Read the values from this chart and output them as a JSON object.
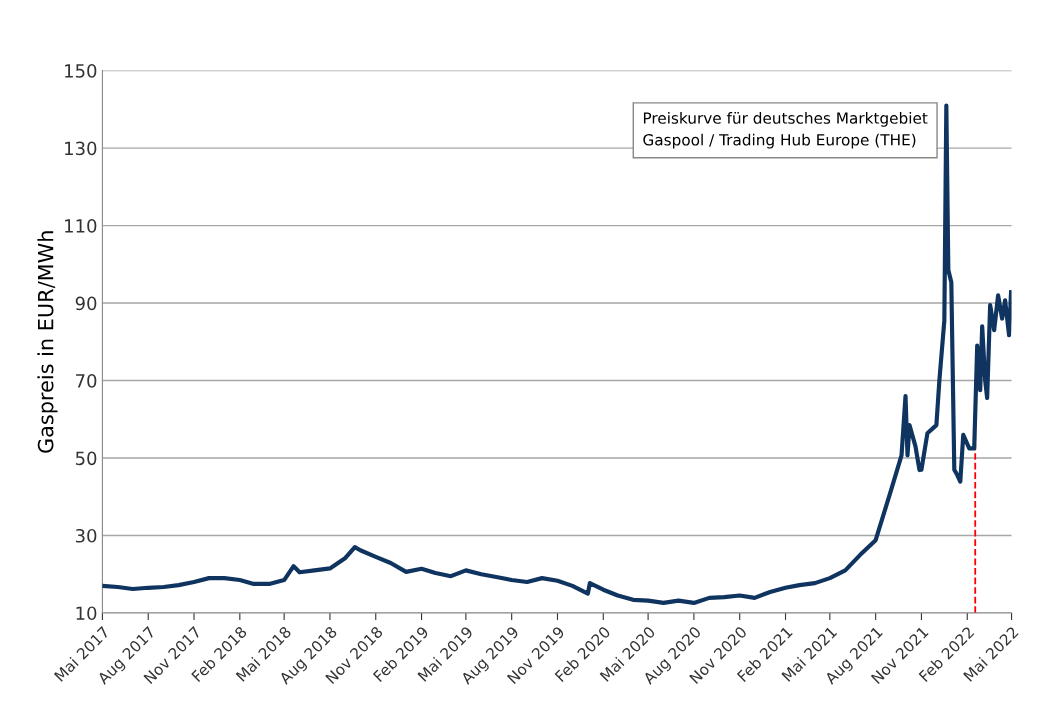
{
  "chart_data": {
    "type": "line",
    "ylabel": "Gaspreis in EUR/MWh",
    "annotations": [
      "Preiskurve für deutsches Marktgebiet\nGaspool / Trading Hub Europe (THE)"
    ],
    "x": [
      "2017-05-01",
      "2017-06-01",
      "2017-07-01",
      "2017-08-01",
      "2017-09-01",
      "2017-10-01",
      "2017-11-01",
      "2017-12-01",
      "2018-01-01",
      "2018-02-01",
      "2018-03-01",
      "2018-04-01",
      "2018-05-01",
      "2018-05-20",
      "2018-06-01",
      "2018-07-01",
      "2018-08-01",
      "2018-09-01",
      "2018-09-20",
      "2018-10-01",
      "2018-11-01",
      "2018-12-01",
      "2019-01-01",
      "2019-02-01",
      "2019-03-01",
      "2019-04-01",
      "2019-05-01",
      "2019-06-01",
      "2019-07-01",
      "2019-08-01",
      "2019-09-01",
      "2019-10-01",
      "2019-11-01",
      "2019-12-01",
      "2020-01-01",
      "2020-01-05",
      "2020-02-01",
      "2020-03-01",
      "2020-04-01",
      "2020-05-01",
      "2020-06-01",
      "2020-07-01",
      "2020-08-01",
      "2020-09-01",
      "2020-10-01",
      "2020-11-01",
      "2020-12-01",
      "2021-01-01",
      "2021-02-01",
      "2021-03-01",
      "2021-04-01",
      "2021-05-01",
      "2021-06-01",
      "2021-07-01",
      "2021-08-01",
      "2021-09-01",
      "2021-09-22",
      "2021-09-30",
      "2021-10-04",
      "2021-10-08",
      "2021-10-20",
      "2021-10-28",
      "2021-11-01",
      "2021-11-13",
      "2021-12-01",
      "2021-12-07",
      "2021-12-17",
      "2021-12-21",
      "2021-12-25",
      "2021-12-31",
      "2022-01-06",
      "2022-01-12",
      "2022-01-18",
      "2022-01-24",
      "2022-02-05",
      "2022-02-15",
      "2022-02-21",
      "2022-02-27",
      "2022-03-03",
      "2022-03-09",
      "2022-03-13",
      "2022-03-19",
      "2022-03-27",
      "2022-04-04",
      "2022-04-12",
      "2022-04-18",
      "2022-04-26",
      "2022-04-30"
    ],
    "series": [
      {
        "color": "#0f3460",
        "values": [
          17.0,
          16.7,
          16.2,
          16.5,
          16.7,
          17.2,
          18.0,
          19.0,
          19.0,
          18.5,
          17.5,
          17.5,
          18.5,
          22.1,
          20.5,
          21.0,
          21.5,
          24.2,
          27.0,
          26.2,
          24.5,
          22.9,
          20.6,
          21.4,
          20.3,
          19.5,
          21.0,
          20.0,
          19.3,
          18.5,
          18.0,
          19.0,
          18.3,
          17.0,
          15.0,
          17.7,
          16.0,
          14.5,
          13.4,
          13.2,
          12.6,
          13.2,
          12.6,
          13.9,
          14.1,
          14.5,
          13.9,
          15.4,
          16.5,
          17.2,
          17.7,
          19.0,
          21.0,
          25.0,
          28.8,
          41.7,
          50.7,
          66.0,
          50.7,
          58.5,
          53.0,
          46.9,
          47.0,
          56.4,
          58.5,
          70.0,
          85.5,
          141.0,
          98.5,
          95.4,
          47.0,
          45.6,
          43.9,
          56.0,
          52.5,
          52.5,
          79.0,
          67.5,
          84.0,
          70.0,
          65.5,
          89.5,
          83.0,
          92.0,
          86.0,
          90.7,
          81.7,
          92.8
        ]
      }
    ],
    "xlim": [
      "2017-05-01",
      "2022-05-01"
    ],
    "xticks": [
      {
        "value": "2017-05-01",
        "label": "Mai 2017"
      },
      {
        "value": "2017-08-01",
        "label": "Aug 2017"
      },
      {
        "value": "2017-11-01",
        "label": "Nov 2017"
      },
      {
        "value": "2018-02-01",
        "label": "Feb 2018"
      },
      {
        "value": "2018-05-01",
        "label": "Mai 2018"
      },
      {
        "value": "2018-08-01",
        "label": "Aug 2018"
      },
      {
        "value": "2018-11-01",
        "label": "Nov 2018"
      },
      {
        "value": "2019-02-01",
        "label": "Feb 2019"
      },
      {
        "value": "2019-05-01",
        "label": "Mai 2019"
      },
      {
        "value": "2019-08-01",
        "label": "Aug 2019"
      },
      {
        "value": "2019-11-01",
        "label": "Nov 2019"
      },
      {
        "value": "2020-02-01",
        "label": "Feb 2020"
      },
      {
        "value": "2020-05-01",
        "label": "Mai 2020"
      },
      {
        "value": "2020-08-01",
        "label": "Aug 2020"
      },
      {
        "value": "2020-11-01",
        "label": "Nov 2020"
      },
      {
        "value": "2021-02-01",
        "label": "Feb 2021"
      },
      {
        "value": "2021-05-01",
        "label": "Mai 2021"
      },
      {
        "value": "2021-08-01",
        "label": "Aug 2021"
      },
      {
        "value": "2021-11-01",
        "label": "Nov 2021"
      },
      {
        "value": "2022-02-01",
        "label": "Feb 2022"
      },
      {
        "value": "2022-05-01",
        "label": "Mai 2022"
      }
    ],
    "ylim": [
      10,
      150
    ],
    "yticks": [
      10,
      30,
      50,
      70,
      90,
      110,
      130,
      150
    ],
    "grid": "y",
    "line_style": "solid",
    "marker": "none",
    "ref_lines": [
      {
        "axis": "x",
        "value": "2022-02-17",
        "color": "#ff0000",
        "line_style": "dashed"
      }
    ]
  }
}
